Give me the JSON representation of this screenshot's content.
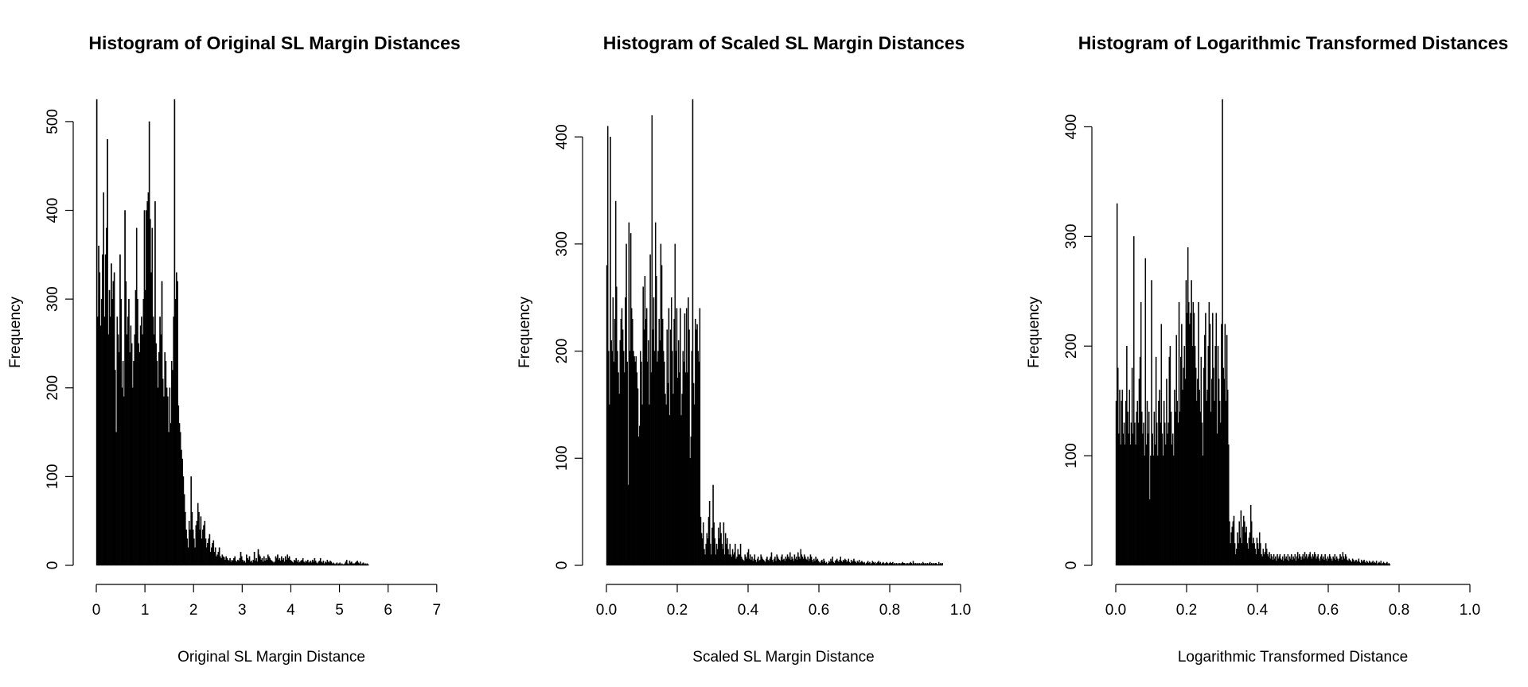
{
  "chart_data": [
    {
      "type": "bar",
      "title": "Histogram of Original SL Margin Distances",
      "xlabel": "Original SL Margin Distance",
      "ylabel": "Frequency",
      "xlim": [
        0,
        7.2
      ],
      "ylim": [
        0,
        525
      ],
      "xticks": [
        0,
        1,
        2,
        3,
        4,
        5,
        6,
        7
      ],
      "xtick_labels": [
        "0",
        "1",
        "2",
        "3",
        "4",
        "5",
        "6",
        "7"
      ],
      "yticks": [
        0,
        100,
        200,
        300,
        400,
        500
      ],
      "ytick_labels": [
        "0",
        "100",
        "200",
        "300",
        "400",
        "500"
      ],
      "bin_width": 0.02,
      "grid": false,
      "legend": "none",
      "values": [
        525,
        280,
        360,
        330,
        270,
        300,
        350,
        420,
        280,
        350,
        380,
        480,
        260,
        310,
        280,
        340,
        300,
        320,
        330,
        220,
        150,
        280,
        260,
        240,
        350,
        300,
        200,
        230,
        190,
        400,
        320,
        260,
        280,
        300,
        240,
        270,
        250,
        200,
        230,
        260,
        310,
        380,
        300,
        250,
        240,
        270,
        280,
        260,
        300,
        400,
        310,
        400,
        410,
        420,
        500,
        390,
        330,
        380,
        280,
        260,
        410,
        250,
        230,
        200,
        240,
        280,
        260,
        320,
        210,
        190,
        240,
        230,
        200,
        190,
        150,
        200,
        160,
        230,
        220,
        280,
        525,
        300,
        330,
        320,
        180,
        160,
        150,
        130,
        120,
        100,
        80,
        60,
        40,
        30,
        20,
        50,
        40,
        100,
        60,
        40,
        30,
        20,
        45,
        50,
        70,
        60,
        40,
        55,
        30,
        40,
        45,
        50,
        30,
        20,
        25,
        30,
        35,
        15,
        20,
        25,
        28,
        15,
        20,
        10,
        12,
        15,
        20,
        10,
        8,
        12,
        10,
        9,
        6,
        10,
        8,
        6,
        5,
        8,
        4,
        6,
        5,
        8,
        10,
        5,
        4,
        6,
        5,
        8,
        15,
        10,
        6,
        4,
        5,
        3,
        12,
        8,
        6,
        10,
        4,
        5,
        3,
        6,
        15,
        5,
        8,
        4,
        18,
        12,
        10,
        6,
        8,
        4,
        10,
        5,
        8,
        6,
        12,
        10,
        8,
        6,
        5,
        4,
        3,
        4,
        10,
        8,
        12,
        6,
        8,
        5,
        10,
        6,
        8,
        4,
        10,
        6,
        12,
        8,
        10,
        6,
        5,
        4,
        3,
        6,
        5,
        8,
        4,
        6,
        3,
        4,
        5,
        6,
        8,
        4,
        3,
        5,
        4,
        6,
        3,
        4,
        5,
        3,
        6,
        4,
        8,
        5,
        3,
        2,
        4,
        5,
        8,
        4,
        3,
        5,
        2,
        4,
        3,
        6,
        4,
        3,
        5,
        4,
        2,
        3,
        2,
        1,
        2,
        3,
        1,
        2,
        3,
        1,
        2,
        1,
        1,
        2,
        4,
        6,
        2,
        1,
        5,
        3,
        4,
        2,
        2,
        2,
        3,
        4,
        5,
        3,
        2,
        4,
        1,
        2,
        3,
        1,
        2,
        1,
        2,
        1
      ]
    },
    {
      "type": "bar",
      "title": "Histogram of Scaled SL Margin Distances",
      "xlabel": "Scaled SL Margin Distance",
      "ylabel": "Frequency",
      "xlim": [
        0,
        1
      ],
      "ylim": [
        0,
        435
      ],
      "xticks": [
        0,
        0.2,
        0.4,
        0.6,
        0.8,
        1
      ],
      "xtick_labels": [
        "0.0",
        "0.2",
        "0.4",
        "0.6",
        "0.8",
        "1.0"
      ],
      "yticks": [
        0,
        100,
        200,
        300,
        400
      ],
      "ytick_labels": [
        "0",
        "100",
        "200",
        "300",
        "400"
      ],
      "bin_width": 0.0025,
      "grid": false,
      "legend": "none",
      "values": [
        280,
        410,
        200,
        150,
        400,
        210,
        200,
        250,
        190,
        230,
        340,
        260,
        200,
        180,
        160,
        210,
        230,
        240,
        220,
        200,
        180,
        250,
        300,
        190,
        75,
        320,
        200,
        310,
        240,
        230,
        200,
        195,
        190,
        195,
        180,
        165,
        120,
        130,
        200,
        190,
        150,
        260,
        220,
        270,
        230,
        240,
        190,
        210,
        150,
        290,
        180,
        420,
        220,
        250,
        200,
        320,
        270,
        190,
        200,
        230,
        210,
        300,
        280,
        230,
        200,
        190,
        160,
        150,
        220,
        170,
        240,
        140,
        220,
        250,
        200,
        160,
        230,
        300,
        200,
        240,
        175,
        210,
        180,
        240,
        140,
        160,
        200,
        190,
        235,
        180,
        240,
        180,
        250,
        220,
        100,
        120,
        200,
        435,
        170,
        150,
        230,
        220,
        225,
        200,
        190,
        240,
        45,
        30,
        25,
        40,
        15,
        10,
        20,
        30,
        25,
        45,
        60,
        20,
        10,
        35,
        75,
        40,
        25,
        10,
        20,
        15,
        35,
        25,
        40,
        30,
        20,
        15,
        40,
        10,
        30,
        20,
        25,
        15,
        10,
        20,
        10,
        8,
        15,
        10,
        12,
        20,
        6,
        8,
        15,
        10,
        10,
        20,
        8,
        6,
        5,
        4,
        10,
        8,
        6,
        12,
        15,
        6,
        10,
        5,
        8,
        4,
        6,
        10,
        5,
        3,
        6,
        8,
        4,
        5,
        10,
        8,
        6,
        5,
        4,
        3,
        6,
        8,
        5,
        4,
        6,
        8,
        12,
        5,
        3,
        6,
        8,
        4,
        10,
        8,
        6,
        5,
        4,
        8,
        10,
        5,
        6,
        4,
        8,
        6,
        10,
        8,
        6,
        12,
        5,
        8,
        6,
        4,
        10,
        6,
        8,
        5,
        12,
        8,
        6,
        15,
        10,
        8,
        6,
        10,
        8,
        6,
        5,
        8,
        4,
        6,
        10,
        8,
        5,
        3,
        6,
        4,
        8,
        5,
        6,
        4,
        3,
        2,
        4,
        5,
        3,
        6,
        4,
        2,
        3,
        1,
        2,
        4,
        3,
        6,
        4,
        8,
        3,
        2,
        4,
        5,
        6,
        4,
        3,
        5,
        8,
        4,
        3,
        5,
        4,
        6,
        5,
        3,
        4,
        6,
        3,
        2,
        5,
        3,
        4,
        6,
        4,
        3,
        2,
        4,
        3,
        5,
        2,
        3,
        4,
        3,
        2,
        3,
        1,
        2,
        3,
        4,
        2,
        3,
        1,
        2,
        4,
        3,
        2,
        3,
        1,
        2,
        3,
        4,
        2,
        3,
        1,
        2,
        3,
        2,
        1,
        2,
        3,
        2,
        1,
        2,
        3,
        2,
        2,
        3,
        1,
        2,
        1,
        2,
        1,
        2,
        1,
        2,
        1,
        2,
        3,
        2,
        2,
        1,
        2,
        1,
        2,
        1,
        2,
        3,
        2,
        1,
        4,
        2,
        1,
        2,
        1,
        2,
        1,
        2,
        1,
        2,
        1,
        3,
        2,
        1,
        2,
        1,
        2,
        1,
        2,
        3,
        1,
        2,
        1,
        2,
        1,
        2,
        2,
        1,
        1,
        3,
        1,
        2,
        1,
        2
      ]
    },
    {
      "type": "bar",
      "title": "Histogram of Logarithmic Transformed Distances",
      "xlabel": "Logarithmic Transformed Distance",
      "ylabel": "Frequency",
      "xlim": [
        0,
        1
      ],
      "ylim": [
        0,
        425
      ],
      "xticks": [
        0,
        0.2,
        0.4,
        0.6,
        0.8,
        1
      ],
      "xtick_labels": [
        "0.0",
        "0.2",
        "0.4",
        "0.6",
        "0.8",
        "1.0"
      ],
      "yticks": [
        0,
        100,
        200,
        300,
        400
      ],
      "ytick_labels": [
        "0",
        "100",
        "200",
        "300",
        "400"
      ],
      "bin_width": 0.0025,
      "grid": false,
      "legend": "none",
      "values": [
        150,
        330,
        180,
        120,
        160,
        110,
        150,
        160,
        120,
        130,
        110,
        150,
        200,
        140,
        120,
        160,
        110,
        130,
        180,
        120,
        300,
        130,
        110,
        140,
        150,
        130,
        170,
        190,
        240,
        140,
        120,
        130,
        100,
        280,
        110,
        150,
        120,
        140,
        60,
        100,
        260,
        120,
        100,
        140,
        110,
        190,
        130,
        100,
        150,
        160,
        130,
        220,
        120,
        100,
        150,
        130,
        110,
        170,
        120,
        130,
        190,
        200,
        140,
        110,
        120,
        100,
        160,
        140,
        210,
        150,
        130,
        240,
        140,
        190,
        220,
        160,
        180,
        200,
        170,
        260,
        230,
        290,
        240,
        220,
        230,
        260,
        200,
        240,
        230,
        200,
        180,
        150,
        170,
        240,
        160,
        140,
        190,
        130,
        100,
        180,
        210,
        230,
        150,
        160,
        200,
        240,
        220,
        140,
        170,
        230,
        180,
        150,
        200,
        230,
        120,
        200,
        170,
        150,
        130,
        220,
        425,
        180,
        170,
        220,
        150,
        210,
        160,
        110,
        40,
        20,
        30,
        35,
        40,
        45,
        20,
        10,
        15,
        30,
        20,
        40,
        25,
        50,
        20,
        35,
        45,
        40,
        30,
        35,
        20,
        15,
        25,
        30,
        55,
        40,
        20,
        25,
        20,
        15,
        10,
        25,
        20,
        15,
        30,
        20,
        10,
        8,
        15,
        10,
        12,
        20,
        15,
        10,
        8,
        12,
        6,
        10,
        8,
        5,
        10,
        6,
        8,
        4,
        10,
        6,
        8,
        10,
        6,
        5,
        8,
        4,
        10,
        6,
        8,
        5,
        10,
        4,
        8,
        6,
        10,
        5,
        8,
        6,
        10,
        4,
        8,
        12,
        6,
        10,
        8,
        5,
        8,
        10,
        6,
        12,
        8,
        10,
        6,
        8,
        10,
        12,
        8,
        6,
        10,
        8,
        12,
        10,
        6,
        8,
        10,
        6,
        4,
        8,
        10,
        6,
        8,
        5,
        10,
        6,
        4,
        8,
        6,
        10,
        8,
        6,
        4,
        8,
        6,
        10,
        5,
        8,
        6,
        4,
        6,
        10,
        8,
        5,
        12,
        8,
        6,
        10,
        8,
        5,
        4,
        6,
        5,
        4,
        3,
        6,
        5,
        3,
        4,
        5,
        3,
        4,
        6,
        3,
        2,
        5,
        3,
        4,
        5,
        3,
        2,
        4,
        3,
        2,
        4,
        3,
        2,
        3,
        4,
        2,
        3,
        2,
        4,
        1,
        2,
        3,
        2,
        4,
        1,
        2,
        3,
        2,
        1,
        2,
        3,
        1,
        2,
        1
      ]
    }
  ]
}
